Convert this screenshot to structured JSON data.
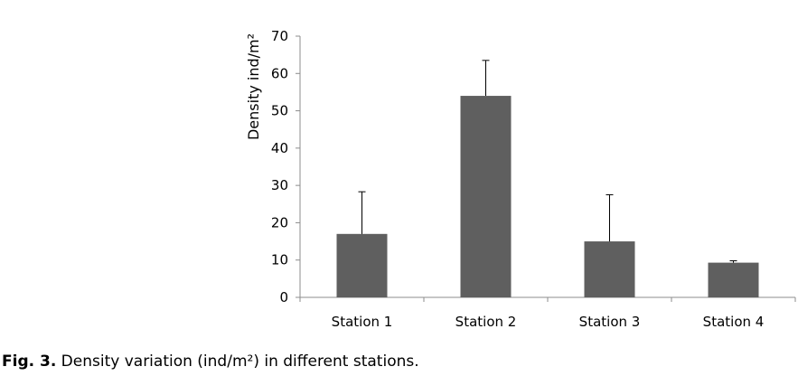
{
  "chart_data": {
    "type": "bar",
    "categories": [
      "Station 1",
      "Station 2",
      "Station 3",
      "Station 4"
    ],
    "values": [
      17,
      54,
      15,
      9.3
    ],
    "error_plus": [
      11.3,
      9.5,
      12.5,
      0.5
    ],
    "ylabel": "Density ind/m²",
    "xlabel": "",
    "ylim": [
      0,
      70
    ],
    "yticks": [
      0,
      10,
      20,
      30,
      40,
      50,
      60,
      70
    ],
    "grid": false,
    "bar_color": "#5f5f5f"
  },
  "caption": {
    "label": "Fig. 3.",
    "text": " Density variation (ind/m²) in different stations."
  }
}
